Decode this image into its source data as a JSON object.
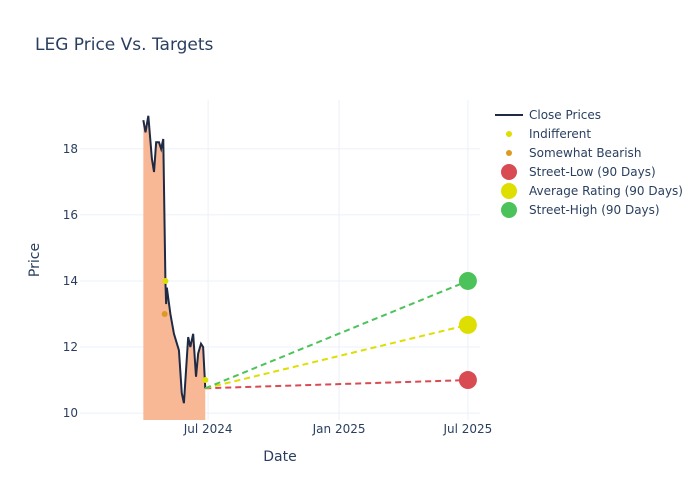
{
  "chart_data": {
    "type": "line",
    "title": "LEG Price Vs. Targets",
    "xlabel": "Date",
    "ylabel": "Price",
    "xlim": [
      "2024-01-03",
      "2025-07-18"
    ],
    "ylim": [
      9.79,
      19.48
    ],
    "x_ticks": [
      {
        "date": "2024-07-01",
        "label": "Jul 2024"
      },
      {
        "date": "2025-01-01",
        "label": "Jan 2025"
      },
      {
        "date": "2025-07-01",
        "label": "Jul 2025"
      }
    ],
    "y_ticks": [
      10,
      12,
      14,
      16,
      18
    ],
    "grid": true,
    "legend_placement": "top-right",
    "close_prices": {
      "name": "Close Prices",
      "color": "#1f2a44",
      "fill_color": "#f9b48f",
      "x": [
        "2024-04-01",
        "2024-04-04",
        "2024-04-08",
        "2024-04-13",
        "2024-04-16",
        "2024-04-19",
        "2024-04-23",
        "2024-04-26",
        "2024-04-29",
        "2024-05-02",
        "2024-05-03",
        "2024-05-04",
        "2024-05-09",
        "2024-05-14",
        "2024-05-21",
        "2024-05-25",
        "2024-05-28",
        "2024-06-03",
        "2024-06-06",
        "2024-06-10",
        "2024-06-14",
        "2024-06-17",
        "2024-06-21",
        "2024-06-24",
        "2024-06-27"
      ],
      "y": [
        18.87,
        18.5,
        19.0,
        17.7,
        17.3,
        18.2,
        18.2,
        18.0,
        18.3,
        14.0,
        13.3,
        13.8,
        13.0,
        12.4,
        11.9,
        10.6,
        10.3,
        12.3,
        12.0,
        12.4,
        11.1,
        11.8,
        12.1,
        12.0,
        10.75
      ]
    },
    "ratings": [
      {
        "name": "Indifferent",
        "color": "#dede00",
        "points": [
          {
            "x": "2024-05-02",
            "y": 14.0
          },
          {
            "x": "2024-06-27",
            "y": 11.0
          }
        ]
      },
      {
        "name": "Somewhat Bearish",
        "color": "#de9a20",
        "points": [
          {
            "x": "2024-05-01",
            "y": 13.0
          }
        ]
      }
    ],
    "targets": {
      "start": {
        "x": "2024-06-27",
        "y": 10.75
      },
      "end_date": "2025-07-01",
      "series": [
        {
          "name": "Street-Low (90 Days)",
          "value": 11.0,
          "color": "#d94b52"
        },
        {
          "name": "Average Rating (90 Days)",
          "value": 12.67,
          "color": "#dede00"
        },
        {
          "name": "Street-High (90 Days)",
          "value": 14.0,
          "color": "#4cc35a"
        }
      ]
    }
  }
}
